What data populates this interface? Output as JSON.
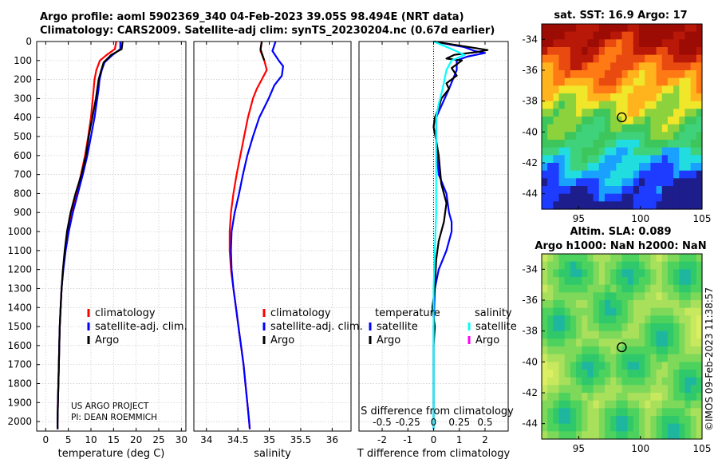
{
  "header": {
    "line1": "Argo profile: aoml 5902369_340 04-Feb-2023 39.05S 98.494E (NRT data)",
    "line2": "Climatology: CARS2009. Satellite-adj clim: synTS_20230204.nc (0.67d earlier)"
  },
  "credits": {
    "project": "US ARGO PROJECT",
    "pi": "PI: DEAN ROEMMICH",
    "stamp": "©IMOS 09-Feb-2023 11:38:57"
  },
  "colors": {
    "climatology": "#ff0000",
    "satellite": "#0000ff",
    "argo": "#000000",
    "argo_sal_diff": "#00ffff",
    "magenta": "#ff00ff"
  },
  "chart_data": [
    {
      "type": "line",
      "id": "temperature",
      "xlabel": "temperature (deg C)",
      "ylabel": "depth",
      "xlim": [
        -2,
        31
      ],
      "ylim": [
        2050,
        0
      ],
      "xticks": [
        0,
        5,
        10,
        15,
        20,
        25,
        30
      ],
      "yticks": [
        0,
        100,
        200,
        300,
        400,
        500,
        600,
        700,
        800,
        900,
        1000,
        1100,
        1200,
        1300,
        1400,
        1500,
        1600,
        1700,
        1800,
        1900,
        2000
      ],
      "legend": [
        "climatology",
        "satellite-adj. clim.",
        "Argo"
      ],
      "series": [
        {
          "name": "climatology",
          "color": "#ff0000",
          "points": [
            [
              15.6,
              0
            ],
            [
              15.3,
              40
            ],
            [
              13.5,
              70
            ],
            [
              12.0,
              100
            ],
            [
              11.2,
              150
            ],
            [
              10.8,
              200
            ],
            [
              10.6,
              250
            ],
            [
              10.4,
              300
            ],
            [
              10.0,
              400
            ],
            [
              9.4,
              500
            ],
            [
              8.7,
              600
            ],
            [
              7.8,
              700
            ],
            [
              6.8,
              800
            ],
            [
              5.7,
              900
            ],
            [
              4.9,
              1000
            ],
            [
              4.3,
              1100
            ],
            [
              3.8,
              1200
            ],
            [
              3.5,
              1300
            ],
            [
              3.3,
              1400
            ],
            [
              3.1,
              1500
            ],
            [
              3.0,
              1600
            ],
            [
              2.9,
              1700
            ],
            [
              2.8,
              1800
            ],
            [
              2.7,
              1900
            ],
            [
              2.6,
              2000
            ],
            [
              2.6,
              2040
            ]
          ]
        },
        {
          "name": "satellite-adj. clim.",
          "color": "#0000ff",
          "points": [
            [
              16.5,
              0
            ],
            [
              16.5,
              40
            ],
            [
              14.8,
              70
            ],
            [
              13.0,
              110
            ],
            [
              12.4,
              150
            ],
            [
              11.9,
              200
            ],
            [
              11.7,
              250
            ],
            [
              11.4,
              300
            ],
            [
              10.8,
              400
            ],
            [
              10.0,
              500
            ],
            [
              9.2,
              600
            ],
            [
              8.2,
              700
            ],
            [
              7.1,
              800
            ],
            [
              6.0,
              900
            ],
            [
              5.1,
              1000
            ],
            [
              4.4,
              1100
            ],
            [
              3.9,
              1200
            ],
            [
              3.5,
              1300
            ],
            [
              3.3,
              1400
            ],
            [
              3.1,
              1500
            ],
            [
              3.0,
              1600
            ],
            [
              2.9,
              1700
            ],
            [
              2.8,
              1800
            ],
            [
              2.7,
              1900
            ],
            [
              2.6,
              2000
            ],
            [
              2.6,
              2040
            ]
          ]
        },
        {
          "name": "Argo",
          "color": "#000000",
          "points": [
            [
              17.0,
              0
            ],
            [
              16.8,
              40
            ],
            [
              14.5,
              70
            ],
            [
              12.8,
              110
            ],
            [
              12.3,
              150
            ],
            [
              11.7,
              200
            ],
            [
              11.4,
              250
            ],
            [
              11.1,
              300
            ],
            [
              10.3,
              400
            ],
            [
              9.5,
              500
            ],
            [
              8.9,
              600
            ],
            [
              7.9,
              700
            ],
            [
              6.6,
              800
            ],
            [
              5.5,
              900
            ],
            [
              4.7,
              1000
            ],
            [
              4.2,
              1100
            ],
            [
              3.8,
              1200
            ],
            [
              3.5,
              1300
            ],
            [
              3.3,
              1400
            ],
            [
              3.1,
              1500
            ],
            [
              3.0,
              1600
            ],
            [
              2.9,
              1700
            ],
            [
              2.8,
              1800
            ],
            [
              2.7,
              1900
            ],
            [
              2.6,
              2000
            ],
            [
              2.6,
              2040
            ]
          ]
        }
      ]
    },
    {
      "type": "line",
      "id": "salinity",
      "xlabel": "salinity",
      "xlim": [
        33.8,
        36.3
      ],
      "ylim": [
        2050,
        0
      ],
      "xticks": [
        34,
        34.5,
        35,
        35.5,
        36
      ],
      "xticklabels": [
        "34",
        "34.5",
        "35",
        "35.5",
        "36"
      ],
      "legend": [
        "climatology",
        "satellite-adj. clim.",
        "Argo"
      ],
      "series": [
        {
          "name": "climatology",
          "color": "#ff0000",
          "points": [
            [
              34.88,
              0
            ],
            [
              34.86,
              50
            ],
            [
              34.92,
              100
            ],
            [
              34.96,
              150
            ],
            [
              34.88,
              200
            ],
            [
              34.8,
              250
            ],
            [
              34.74,
              300
            ],
            [
              34.66,
              400
            ],
            [
              34.6,
              500
            ],
            [
              34.54,
              600
            ],
            [
              34.48,
              700
            ],
            [
              34.43,
              800
            ],
            [
              34.39,
              900
            ],
            [
              34.37,
              1000
            ],
            [
              34.37,
              1100
            ],
            [
              34.39,
              1200
            ],
            [
              34.43,
              1300
            ],
            [
              34.47,
              1400
            ],
            [
              34.51,
              1500
            ],
            [
              34.55,
              1600
            ],
            [
              34.59,
              1700
            ],
            [
              34.62,
              1800
            ],
            [
              34.65,
              1900
            ],
            [
              34.68,
              2000
            ],
            [
              34.69,
              2040
            ]
          ]
        },
        {
          "name": "satellite-adj. clim.",
          "color": "#0000ff",
          "points": [
            [
              35.1,
              0
            ],
            [
              35.05,
              50
            ],
            [
              35.15,
              100
            ],
            [
              35.22,
              130
            ],
            [
              35.2,
              180
            ],
            [
              35.08,
              230
            ],
            [
              34.99,
              300
            ],
            [
              34.84,
              400
            ],
            [
              34.74,
              500
            ],
            [
              34.65,
              600
            ],
            [
              34.58,
              700
            ],
            [
              34.52,
              800
            ],
            [
              34.45,
              900
            ],
            [
              34.4,
              1000
            ],
            [
              34.39,
              1100
            ],
            [
              34.4,
              1200
            ],
            [
              34.43,
              1300
            ],
            [
              34.47,
              1400
            ],
            [
              34.51,
              1500
            ],
            [
              34.55,
              1600
            ],
            [
              34.59,
              1700
            ],
            [
              34.62,
              1800
            ],
            [
              34.65,
              1900
            ],
            [
              34.68,
              2000
            ],
            [
              34.69,
              2040
            ]
          ]
        },
        {
          "name": "Argo",
          "color": "#000000",
          "points": [
            [
              34.88,
              0
            ],
            [
              34.86,
              40
            ],
            [
              34.92,
              100
            ]
          ]
        }
      ]
    },
    {
      "type": "line",
      "id": "difference",
      "xlabel": "T difference from climatology",
      "xlabel_top": "S difference from climatology",
      "xlim": [
        -2.9,
        2.9
      ],
      "ylim": [
        2050,
        0
      ],
      "xticks": [
        -2,
        -1,
        0,
        1,
        2
      ],
      "xticklabels": [
        "-2",
        "-1",
        "0",
        "1",
        "2"
      ],
      "s_ticklabels": [
        "-0.5",
        "-0.25",
        "0",
        "0.25",
        "0.5"
      ],
      "legend": {
        "temperature_title": "temperature",
        "salinity_title": "salinity",
        "satellite_t": "satellite",
        "argo_t": "Argo",
        "satellite_s": "satellite",
        "argo_s": "Argo"
      },
      "series": [
        {
          "name": "temperature satellite",
          "color": "#0000ff",
          "points": [
            [
              0.0,
              0
            ],
            [
              1.2,
              30
            ],
            [
              1.6,
              50
            ],
            [
              2.0,
              60
            ],
            [
              1.3,
              80
            ],
            [
              0.9,
              100
            ],
            [
              0.9,
              150
            ],
            [
              0.6,
              250
            ],
            [
              0.1,
              400
            ],
            [
              0.1,
              550
            ],
            [
              0.2,
              700
            ],
            [
              0.5,
              800
            ],
            [
              0.6,
              900
            ],
            [
              0.7,
              950
            ],
            [
              0.7,
              1000
            ],
            [
              0.5,
              1100
            ],
            [
              0.2,
              1200
            ],
            [
              0.05,
              1300
            ],
            [
              0.0,
              1500
            ],
            [
              0.0,
              2040
            ]
          ]
        },
        {
          "name": "temperature Argo",
          "color": "#000000",
          "points": [
            [
              0.0,
              0
            ],
            [
              1.4,
              30
            ],
            [
              2.1,
              45
            ],
            [
              1.7,
              55
            ],
            [
              0.8,
              70
            ],
            [
              0.5,
              90
            ],
            [
              1.1,
              100
            ],
            [
              0.7,
              140
            ],
            [
              0.9,
              180
            ],
            [
              0.5,
              220
            ],
            [
              0.6,
              250
            ],
            [
              0.3,
              300
            ],
            [
              0.2,
              350
            ],
            [
              0.05,
              400
            ],
            [
              0.0,
              450
            ],
            [
              0.1,
              520
            ],
            [
              0.2,
              600
            ],
            [
              0.3,
              750
            ],
            [
              0.5,
              850
            ],
            [
              0.4,
              950
            ],
            [
              0.2,
              1050
            ],
            [
              0.1,
              1150
            ],
            [
              0.05,
              1300
            ],
            [
              -0.05,
              1400
            ],
            [
              0.05,
              1500
            ],
            [
              0.0,
              1600
            ],
            [
              0.0,
              2040
            ]
          ]
        },
        {
          "name": "salinity satellite",
          "color": "#00ffff",
          "points": [
            [
              0.0,
              0
            ],
            [
              0.7,
              40
            ],
            [
              1.2,
              70
            ],
            [
              0.7,
              100
            ],
            [
              0.5,
              150
            ],
            [
              0.35,
              250
            ],
            [
              0.2,
              330
            ],
            [
              0.1,
              400
            ],
            [
              0.1,
              550
            ],
            [
              0.1,
              700
            ],
            [
              0.1,
              900
            ],
            [
              0.05,
              1100
            ],
            [
              0.0,
              1300
            ],
            [
              0.0,
              1700
            ],
            [
              0.0,
              2040
            ]
          ]
        }
      ]
    },
    {
      "type": "heatmap",
      "id": "sst-map",
      "title": "sat. SST: 16.9 Argo: 17",
      "xlim": [
        92,
        105
      ],
      "ylim": [
        -45,
        -33
      ],
      "xticks": [
        95,
        100,
        105
      ],
      "yticks": [
        -34,
        -36,
        -38,
        -40,
        -42,
        -44
      ],
      "marker": {
        "lon": 98.494,
        "lat": -39.05
      }
    },
    {
      "type": "heatmap",
      "id": "sla-map",
      "title": "Altim. SLA: 0.089",
      "subtitle": "Argo h1000: NaN h2000: NaN",
      "xlim": [
        92,
        105
      ],
      "ylim": [
        -45,
        -33
      ],
      "xticks": [
        95,
        100,
        105
      ],
      "yticks": [
        -34,
        -36,
        -38,
        -40,
        -42,
        -44
      ],
      "marker": {
        "lon": 98.494,
        "lat": -39.05
      }
    }
  ]
}
